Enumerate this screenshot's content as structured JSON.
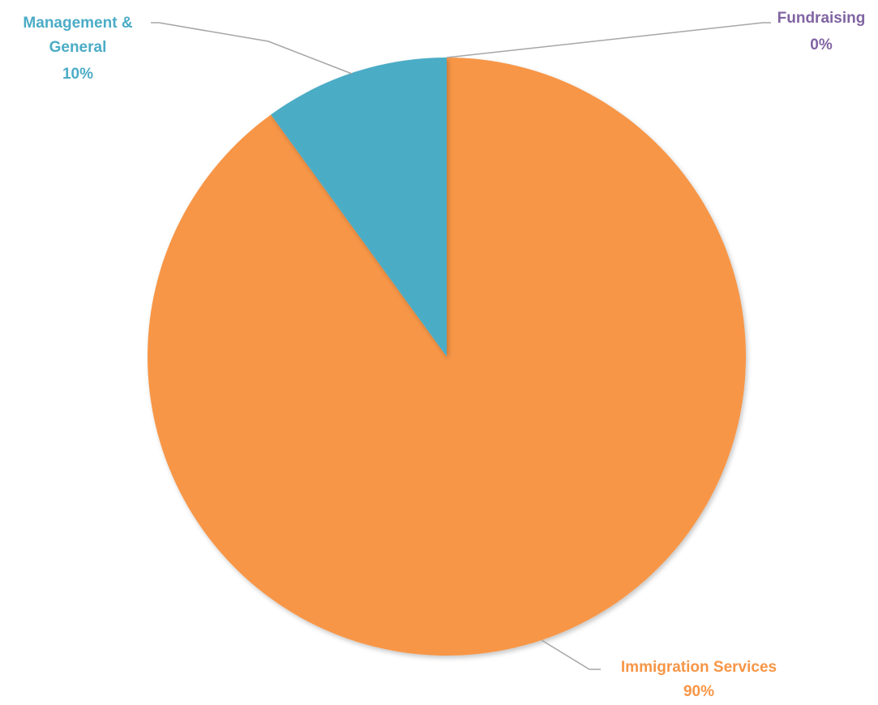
{
  "chart_data": {
    "type": "pie",
    "slices": [
      {
        "label": "Immigration Services",
        "value": 90,
        "value_label": "90%",
        "color": "#f79646"
      },
      {
        "label": "Management & General",
        "value": 10,
        "value_label": "10%",
        "color": "#4bacc6"
      },
      {
        "label": "Fundraising",
        "value": 0,
        "value_label": "0%",
        "color": "#8064a2"
      }
    ],
    "start_angle_deg": 0,
    "direction": "clockwise",
    "data_labels": "outside with leader lines",
    "legend": "none",
    "leader_line_color": "#a6a6a6"
  }
}
